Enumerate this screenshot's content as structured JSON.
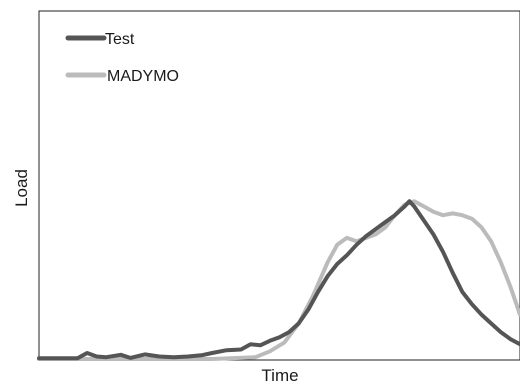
{
  "chart_data": {
    "type": "line",
    "xlabel": "Time",
    "ylabel": "Load",
    "xlim": [
      0,
      100
    ],
    "ylim": [
      0,
      100
    ],
    "grid": false,
    "ticks": false,
    "legend_position": "top-left",
    "series": [
      {
        "name": "Test",
        "color": "#555555",
        "points": [
          [
            0,
            0.5
          ],
          [
            8,
            0.5
          ],
          [
            10,
            2.0
          ],
          [
            12,
            1.0
          ],
          [
            14,
            0.8
          ],
          [
            17,
            1.5
          ],
          [
            19,
            0.6
          ],
          [
            22,
            1.6
          ],
          [
            25,
            1.0
          ],
          [
            28,
            0.8
          ],
          [
            31,
            1.0
          ],
          [
            34,
            1.4
          ],
          [
            36,
            2.0
          ],
          [
            39,
            2.8
          ],
          [
            42,
            3.0
          ],
          [
            44,
            4.5
          ],
          [
            46,
            4.2
          ],
          [
            48,
            5.5
          ],
          [
            50,
            6.5
          ],
          [
            52,
            8.0
          ],
          [
            54,
            10.5
          ],
          [
            56,
            14.5
          ],
          [
            58,
            19.5
          ],
          [
            60,
            24.0
          ],
          [
            62,
            27.5
          ],
          [
            64,
            30.0
          ],
          [
            66,
            33.0
          ],
          [
            68,
            35.5
          ],
          [
            70,
            37.5
          ],
          [
            72,
            39.5
          ],
          [
            74,
            41.5
          ],
          [
            76,
            44.0
          ],
          [
            77,
            45.5
          ],
          [
            78,
            44.0
          ],
          [
            80,
            40.0
          ],
          [
            82,
            36.0
          ],
          [
            84,
            31.0
          ],
          [
            86,
            25.0
          ],
          [
            88,
            19.5
          ],
          [
            90,
            16.0
          ],
          [
            92,
            13.0
          ],
          [
            94,
            10.5
          ],
          [
            96,
            8.0
          ],
          [
            98,
            6.0
          ],
          [
            100,
            4.5
          ]
        ]
      },
      {
        "name": "MADYMO",
        "color": "#bbbbbb",
        "points": [
          [
            0,
            0.3
          ],
          [
            20,
            0.3
          ],
          [
            36,
            0.3
          ],
          [
            45,
            0.8
          ],
          [
            48,
            2.5
          ],
          [
            51,
            5.0
          ],
          [
            54,
            10.5
          ],
          [
            57,
            18.5
          ],
          [
            60,
            28.0
          ],
          [
            62,
            33.0
          ],
          [
            64,
            35.0
          ],
          [
            66,
            34.0
          ],
          [
            68,
            35.0
          ],
          [
            70,
            36.0
          ],
          [
            72,
            38.0
          ],
          [
            74,
            41.5
          ],
          [
            76,
            44.5
          ],
          [
            78,
            45.5
          ],
          [
            80,
            44.0
          ],
          [
            82,
            42.5
          ],
          [
            84,
            41.5
          ],
          [
            86,
            42.0
          ],
          [
            88,
            41.5
          ],
          [
            90,
            40.5
          ],
          [
            92,
            38.0
          ],
          [
            94,
            34.0
          ],
          [
            96,
            28.0
          ],
          [
            98,
            21.0
          ],
          [
            100,
            13.0
          ]
        ]
      }
    ]
  }
}
